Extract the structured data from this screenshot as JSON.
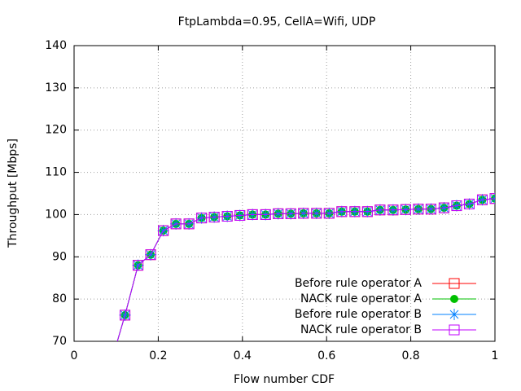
{
  "chart_data": {
    "type": "line",
    "title": "FtpLambda=0.95, CellA=Wifi, UDP",
    "x_label": "Flow number  CDF",
    "y_label": "Throughput [Mbps]",
    "x": [
      0.091,
      0.121,
      0.152,
      0.182,
      0.212,
      0.242,
      0.273,
      0.303,
      0.333,
      0.364,
      0.394,
      0.424,
      0.455,
      0.485,
      0.515,
      0.545,
      0.576,
      0.606,
      0.636,
      0.667,
      0.697,
      0.727,
      0.758,
      0.788,
      0.818,
      0.848,
      0.879,
      0.909,
      0.939,
      0.97,
      1
    ],
    "series": [
      {
        "name": "Before rule operator A",
        "color": "#ff0000",
        "marker": "square",
        "values": [
          66,
          76.2,
          88,
          90.5,
          96.2,
          97.8,
          97.8,
          99.2,
          99.4,
          99.6,
          99.8,
          100,
          100,
          100.2,
          100.2,
          100.3,
          100.3,
          100.3,
          100.7,
          100.7,
          100.7,
          101.1,
          101.1,
          101.2,
          101.3,
          101.3,
          101.6,
          102.1,
          102.5,
          103.5,
          103.8
        ]
      },
      {
        "name": "NACK rule operator A",
        "color": "#00c000",
        "marker": "circle",
        "values": [
          66,
          76.2,
          88,
          90.5,
          96.2,
          97.8,
          97.8,
          99.2,
          99.4,
          99.6,
          99.8,
          100,
          100,
          100.2,
          100.2,
          100.3,
          100.3,
          100.3,
          100.7,
          100.7,
          100.7,
          101.1,
          101.1,
          101.2,
          101.3,
          101.3,
          101.6,
          102.1,
          102.5,
          103.5,
          103.8
        ]
      },
      {
        "name": "Before rule operator B",
        "color": "#0080ff",
        "marker": "star",
        "values": [
          66,
          76.2,
          88,
          90.5,
          96.2,
          97.8,
          97.8,
          99.2,
          99.4,
          99.6,
          99.8,
          100,
          100,
          100.2,
          100.2,
          100.3,
          100.3,
          100.3,
          100.7,
          100.7,
          100.7,
          101.1,
          101.1,
          101.2,
          101.3,
          101.3,
          101.6,
          102.1,
          102.5,
          103.5,
          103.8
        ]
      },
      {
        "name": "NACK rule operator B",
        "color": "#c000ff",
        "marker": "square",
        "values": [
          66,
          76.2,
          88,
          90.5,
          96.2,
          97.8,
          97.8,
          99.2,
          99.4,
          99.6,
          99.8,
          100,
          100,
          100.2,
          100.2,
          100.3,
          100.3,
          100.3,
          100.7,
          100.7,
          100.7,
          101.1,
          101.1,
          101.2,
          101.3,
          101.3,
          101.6,
          102.1,
          102.5,
          103.5,
          103.8
        ]
      }
    ],
    "xlim": [
      0,
      1
    ],
    "xticks": [
      0,
      0.2,
      0.4,
      0.6,
      0.8,
      1
    ],
    "ylim": [
      70,
      140
    ],
    "yticks": [
      70,
      80,
      90,
      100,
      110,
      120,
      130,
      140
    ],
    "grid": true,
    "legend": "bottom-right"
  }
}
